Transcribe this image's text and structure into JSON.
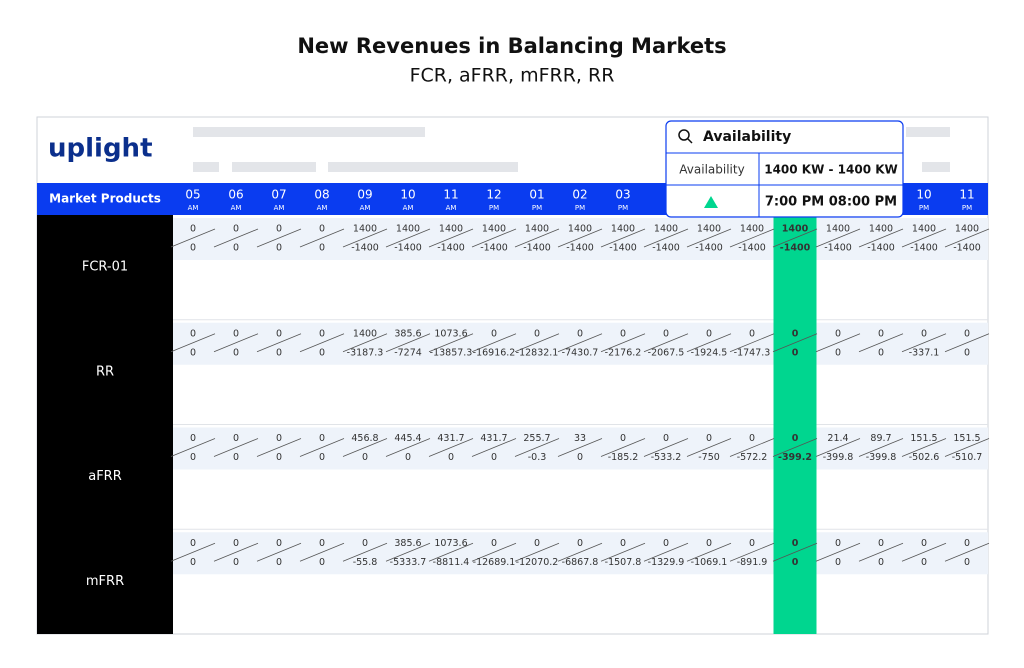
{
  "title": "New Revenues in Balancing Markets",
  "subtitle": "FCR, aFRR, mFRR, RR",
  "logo": "uplight",
  "header_label": "Market Products",
  "highlight_column": 14,
  "columns": [
    {
      "hour": "05",
      "period": "AM"
    },
    {
      "hour": "06",
      "period": "AM"
    },
    {
      "hour": "07",
      "period": "AM"
    },
    {
      "hour": "08",
      "period": "AM"
    },
    {
      "hour": "09",
      "period": "AM"
    },
    {
      "hour": "10",
      "period": "AM"
    },
    {
      "hour": "11",
      "period": "AM"
    },
    {
      "hour": "12",
      "period": "PM"
    },
    {
      "hour": "01",
      "period": "PM"
    },
    {
      "hour": "02",
      "period": "PM"
    },
    {
      "hour": "03",
      "period": "PM"
    },
    {
      "hour": null,
      "period": null
    },
    {
      "hour": null,
      "period": null
    },
    {
      "hour": null,
      "period": null
    },
    {
      "hour": null,
      "period": null
    },
    {
      "hour": null,
      "period": null
    },
    {
      "hour": null,
      "period": null
    },
    {
      "hour": "10",
      "period": "PM"
    },
    {
      "hour": "11",
      "period": "PM"
    }
  ],
  "rows": [
    {
      "name": "FCR-01",
      "top": [
        0,
        0,
        0,
        0,
        1400,
        1400,
        1400,
        1400,
        1400,
        1400,
        1400,
        1400,
        1400,
        1400,
        1400,
        1400,
        1400,
        1400,
        1400
      ],
      "bottom": [
        0,
        0,
        0,
        0,
        -1400,
        -1400,
        -1400,
        -1400,
        -1400,
        -1400,
        -1400,
        -1400,
        -1400,
        -1400,
        -1400,
        -1400,
        -1400,
        -1400,
        -1400
      ]
    },
    {
      "name": "RR",
      "top": [
        0,
        0,
        0,
        0,
        1400,
        385.6,
        1073.6,
        0,
        0,
        0,
        0,
        0,
        0,
        0,
        0,
        0,
        0,
        0,
        0
      ],
      "bottom": [
        0,
        0,
        0,
        0,
        -3187.3,
        -7274,
        -13857.3,
        -16916.2,
        -12832.1,
        -7430.7,
        -2176.2,
        -2067.5,
        -1924.5,
        -1747.3,
        0,
        0,
        0,
        -337.1,
        0
      ]
    },
    {
      "name": "aFRR",
      "top": [
        0,
        0,
        0,
        0,
        456.8,
        445.4,
        431.7,
        431.7,
        255.7,
        33,
        0,
        0,
        0,
        0,
        0,
        21.4,
        89.7,
        151.5,
        151.5
      ],
      "bottom": [
        0,
        0,
        0,
        0,
        0,
        0,
        0,
        0,
        -0.3,
        0,
        -185.2,
        -533.2,
        -750,
        -572.2,
        -399.2,
        -399.8,
        -399.8,
        -502.6,
        -510.7
      ]
    },
    {
      "name": "mFRR",
      "top": [
        0,
        0,
        0,
        0,
        0,
        385.6,
        1073.6,
        0,
        0,
        0,
        0,
        0,
        0,
        0,
        0,
        0,
        0,
        0,
        0
      ],
      "bottom": [
        0,
        0,
        0,
        0,
        -55.8,
        -5333.7,
        -8811.4,
        -12689.1,
        -12070.2,
        -6867.8,
        -1507.8,
        -1329.9,
        -1069.1,
        -891.9,
        0,
        0,
        0,
        0,
        0
      ]
    }
  ],
  "tooltip": {
    "title": "Availability",
    "label": "Availability",
    "range": "1400 KW - 1400 KW",
    "time": "7:00 PM 08:00 PM"
  }
}
